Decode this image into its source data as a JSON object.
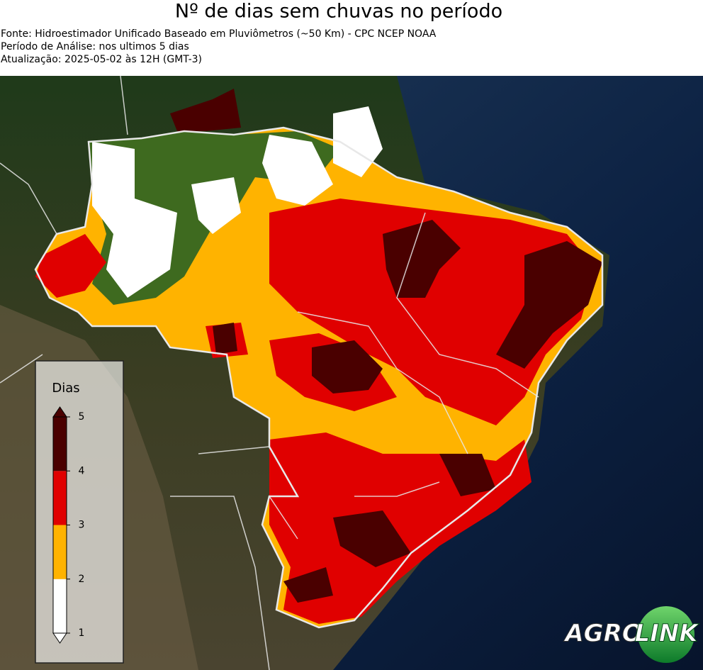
{
  "title": "Nº de dias sem chuvas no período",
  "lines": [
    "Fonte: Hidroestimador Unificado Baseado em Pluviômetros (~50 Km) - CPC NCEP NOAA",
    "Período de Análise: nos ultimos 5 dias",
    "Atualização: 2025-05-02 às 12H (GMT-3)"
  ],
  "legend": {
    "title": "Dias",
    "ticks": [
      1,
      2,
      3,
      4,
      5
    ],
    "colors": [
      "#ffffff",
      "#ffb300",
      "#e00000",
      "#4a0000"
    ]
  },
  "logo": {
    "left": "AGRO",
    "right": "LINK"
  }
}
